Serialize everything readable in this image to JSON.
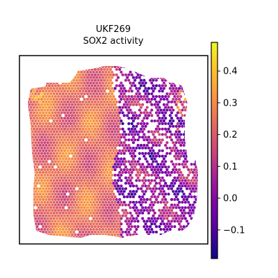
{
  "chart_data": {
    "type": "heatmap",
    "title_line1": "UKF269",
    "title_line2": "SOX2 activity",
    "xlabel": "",
    "ylabel": "",
    "grid": false,
    "colormap": "plasma",
    "colorbar": {
      "range": [
        -0.19,
        0.49
      ],
      "ticks": [
        -0.1,
        0.0,
        0.1,
        0.2,
        0.3,
        0.4
      ],
      "tick_labels": [
        "−0.1",
        "0.0",
        "0.1",
        "0.2",
        "0.3",
        "0.4"
      ],
      "placement": "right"
    },
    "region_summary": [
      {
        "region": "left tissue",
        "typical_value": 0.24
      },
      {
        "region": "right tissue",
        "typical_value": 0.02
      }
    ]
  }
}
